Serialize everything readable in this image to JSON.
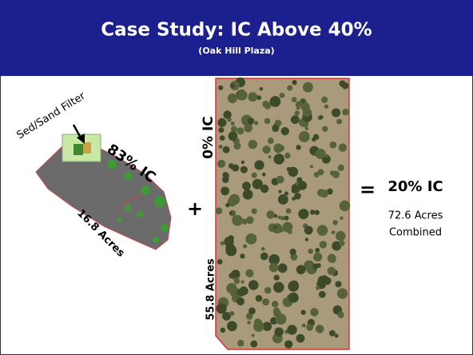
{
  "header": {
    "title": "Case Study: IC Above 40%",
    "subtitle": "(Oak Hill Plaza)"
  },
  "left_site": {
    "label": "Sed/Sand Filter",
    "ic": "83% IC",
    "area": "16.8 Acres"
  },
  "operator_plus": "+",
  "right_site": {
    "ic": "0% IC",
    "area": "55.8 Acres"
  },
  "operator_equals": "=",
  "result": {
    "ic": "20% IC",
    "area_lines": [
      "72.6 Acres",
      "Combined"
    ]
  }
}
